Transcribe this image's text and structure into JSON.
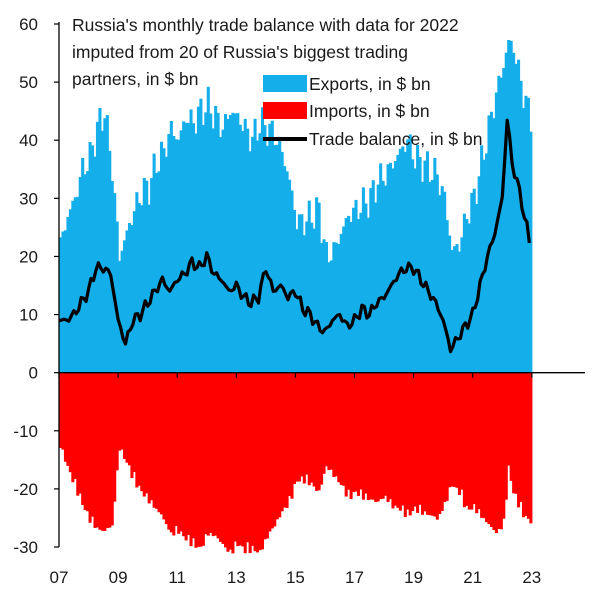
{
  "chart_data": {
    "type": "area",
    "title_lines": [
      "Russia's monthly trade balance with data for 2022",
      "imputed from 20 of Russia's biggest trading",
      "partners, in $ bn"
    ],
    "xlabel": "",
    "ylabel": "",
    "x_ticks": [
      "07",
      "09",
      "11",
      "13",
      "15",
      "17",
      "19",
      "21",
      "23"
    ],
    "x_tick_years": [
      2007,
      2009,
      2011,
      2013,
      2015,
      2017,
      2019,
      2021,
      2023
    ],
    "xlim": [
      2007,
      2024.8
    ],
    "y_ticks": [
      "60",
      "50",
      "40",
      "30",
      "20",
      "10",
      "0",
      "-10",
      "-20",
      "-30"
    ],
    "y_tick_values": [
      60,
      50,
      40,
      30,
      20,
      10,
      0,
      -10,
      -20,
      -30
    ],
    "ylim": [
      -30,
      60
    ],
    "legend": [
      "Exports, in $ bn",
      "Imports, in $ bn",
      "Trade balance, in $ bn"
    ],
    "colors": {
      "exports": "#14AEEB",
      "imports": "#FF0000",
      "balance": "#000000",
      "axis": "#000000"
    },
    "series": [
      {
        "name": "Exports, in $ bn",
        "x": [
          2007.0,
          2007.25,
          2007.5,
          2007.75,
          2008.0,
          2008.25,
          2008.5,
          2008.75,
          2009.0,
          2009.25,
          2009.5,
          2009.75,
          2010.0,
          2010.25,
          2010.5,
          2010.75,
          2011.0,
          2011.25,
          2011.5,
          2011.75,
          2012.0,
          2012.25,
          2012.5,
          2012.75,
          2013.0,
          2013.25,
          2013.5,
          2013.75,
          2014.0,
          2014.25,
          2014.5,
          2014.75,
          2015.0,
          2015.25,
          2015.5,
          2015.75,
          2016.0,
          2016.25,
          2016.5,
          2016.75,
          2017.0,
          2017.25,
          2017.5,
          2017.75,
          2018.0,
          2018.25,
          2018.5,
          2018.75,
          2019.0,
          2019.25,
          2019.5,
          2019.75,
          2020.0,
          2020.25,
          2020.5,
          2020.75,
          2021.0,
          2021.25,
          2021.5,
          2021.75,
          2022.0,
          2022.17,
          2022.33,
          2022.5,
          2022.67,
          2022.83,
          2023.0
        ],
        "values": [
          22,
          27,
          30,
          35,
          37,
          42,
          45,
          35,
          20,
          24,
          28,
          31,
          32,
          36,
          38,
          42,
          40,
          44,
          43,
          45,
          46,
          44,
          42,
          45,
          44,
          42,
          40,
          43,
          42,
          41,
          38,
          33,
          26,
          26,
          27,
          28,
          20,
          21,
          24,
          27,
          28,
          29,
          30,
          33,
          34,
          36,
          38,
          40,
          37,
          36,
          35,
          34,
          30,
          21,
          22,
          27,
          30,
          36,
          42,
          48,
          53,
          57,
          56,
          52,
          48,
          45,
          43
        ]
      },
      {
        "name": "Imports, in $ bn",
        "x": [
          2007.0,
          2007.25,
          2007.5,
          2007.75,
          2008.0,
          2008.25,
          2008.5,
          2008.75,
          2009.0,
          2009.25,
          2009.5,
          2009.75,
          2010.0,
          2010.25,
          2010.5,
          2010.75,
          2011.0,
          2011.25,
          2011.5,
          2011.75,
          2012.0,
          2012.25,
          2012.5,
          2012.75,
          2013.0,
          2013.25,
          2013.5,
          2013.75,
          2014.0,
          2014.25,
          2014.5,
          2014.75,
          2015.0,
          2015.25,
          2015.5,
          2015.75,
          2016.0,
          2016.25,
          2016.5,
          2016.75,
          2017.0,
          2017.25,
          2017.5,
          2017.75,
          2018.0,
          2018.25,
          2018.5,
          2018.75,
          2019.0,
          2019.25,
          2019.5,
          2019.75,
          2020.0,
          2020.25,
          2020.5,
          2020.75,
          2021.0,
          2021.25,
          2021.5,
          2021.75,
          2022.0,
          2022.17,
          2022.33,
          2022.5,
          2022.67,
          2022.83,
          2023.0
        ],
        "values": [
          -12,
          -15,
          -18,
          -21,
          -24,
          -26,
          -27,
          -26,
          -12,
          -14,
          -17,
          -19,
          -21,
          -23,
          -25,
          -27,
          -26,
          -27,
          -28,
          -29,
          -27,
          -28,
          -29,
          -30,
          -28,
          -29,
          -29,
          -30,
          -28,
          -26,
          -23,
          -21,
          -17,
          -17,
          -18,
          -20,
          -16,
          -17,
          -18,
          -20,
          -19,
          -20,
          -21,
          -22,
          -21,
          -22,
          -22,
          -23,
          -22,
          -23,
          -24,
          -25,
          -22,
          -18,
          -19,
          -22,
          -22,
          -24,
          -26,
          -27,
          -25,
          -15,
          -19,
          -21,
          -23,
          -24,
          -25
        ]
      },
      {
        "name": "Trade balance, in $ bn",
        "x": [
          2007.0,
          2007.25,
          2007.5,
          2007.75,
          2008.0,
          2008.25,
          2008.5,
          2008.75,
          2009.0,
          2009.25,
          2009.5,
          2009.75,
          2010.0,
          2010.25,
          2010.5,
          2010.75,
          2011.0,
          2011.25,
          2011.5,
          2011.75,
          2012.0,
          2012.25,
          2012.5,
          2012.75,
          2013.0,
          2013.25,
          2013.5,
          2013.75,
          2014.0,
          2014.25,
          2014.5,
          2014.75,
          2015.0,
          2015.25,
          2015.5,
          2015.75,
          2016.0,
          2016.25,
          2016.5,
          2016.75,
          2017.0,
          2017.25,
          2017.5,
          2017.75,
          2018.0,
          2018.25,
          2018.5,
          2018.75,
          2019.0,
          2019.25,
          2019.5,
          2019.75,
          2020.0,
          2020.25,
          2020.5,
          2020.75,
          2021.0,
          2021.25,
          2021.5,
          2021.75,
          2022.0,
          2022.17,
          2022.33,
          2022.5,
          2022.67,
          2022.83,
          2023.0
        ],
        "values": [
          9,
          9,
          10,
          12,
          14,
          18,
          18,
          17,
          9,
          5,
          9,
          10,
          12,
          14,
          16,
          14,
          16,
          17,
          19,
          18,
          20,
          17,
          16,
          14,
          15,
          13,
          12,
          13,
          18,
          14,
          15,
          13,
          14,
          11,
          10,
          8,
          7,
          9,
          10,
          8,
          9,
          11,
          10,
          12,
          13,
          15,
          17,
          18,
          18,
          16,
          14,
          12,
          9,
          4,
          6,
          8,
          10,
          15,
          20,
          24,
          30,
          44,
          36,
          33,
          29,
          25,
          20
        ]
      }
    ]
  }
}
